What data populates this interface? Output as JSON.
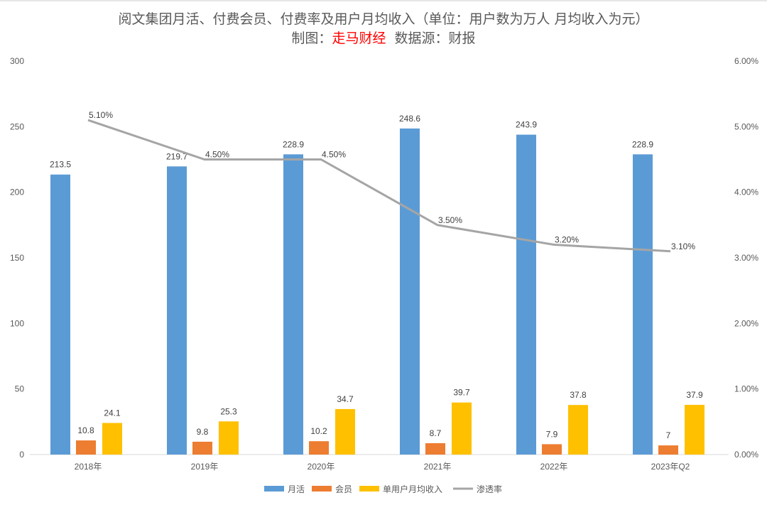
{
  "chart_data": {
    "type": "bar+line",
    "title": "阅文集团月活、付费会员、付费率及用户月均收入（单位：用户数为万人 月均收入为元）",
    "subtitle": {
      "prefix": "制图：",
      "brand": "走马财经",
      "source": "数据源：财报"
    },
    "categories": [
      "2018年",
      "2019年",
      "2020年",
      "2021年",
      "2022年",
      "2023年Q2"
    ],
    "series": [
      {
        "name": "月活",
        "type": "bar",
        "axis": "left",
        "color": "#5b9bd5",
        "values": [
          213.5,
          219.7,
          228.9,
          248.6,
          243.9,
          228.9
        ],
        "labels": [
          "213.5",
          "219.7",
          "228.9",
          "248.6",
          "243.9",
          "228.9"
        ]
      },
      {
        "name": "会员",
        "type": "bar",
        "axis": "left",
        "color": "#ed7d31",
        "values": [
          10.8,
          9.8,
          10.2,
          8.7,
          7.9,
          7
        ],
        "labels": [
          "10.8",
          "9.8",
          "10.2",
          "8.7",
          "7.9",
          "7"
        ]
      },
      {
        "name": "单用户月均收入",
        "type": "bar",
        "axis": "left",
        "color": "#ffc000",
        "values": [
          24.1,
          25.3,
          34.7,
          39.7,
          37.8,
          37.9
        ],
        "labels": [
          "24.1",
          "25.3",
          "34.7",
          "39.7",
          "37.8",
          "37.9"
        ]
      },
      {
        "name": "渗透率",
        "type": "line",
        "axis": "right",
        "color": "#a5a5a5",
        "values": [
          5.1,
          4.5,
          4.5,
          3.5,
          3.2,
          3.1
        ],
        "labels": [
          "5.10%",
          "4.50%",
          "4.50%",
          "3.50%",
          "3.20%",
          "3.10%"
        ]
      }
    ],
    "yleft": {
      "range": [
        0,
        300
      ],
      "ticks": [
        "0",
        "50",
        "100",
        "150",
        "200",
        "250",
        "300"
      ]
    },
    "yright": {
      "range": [
        0,
        6
      ],
      "ticks": [
        "0.00%",
        "1.00%",
        "2.00%",
        "3.00%",
        "4.00%",
        "5.00%",
        "6.00%"
      ]
    },
    "grid": false,
    "legend": "bottom"
  }
}
